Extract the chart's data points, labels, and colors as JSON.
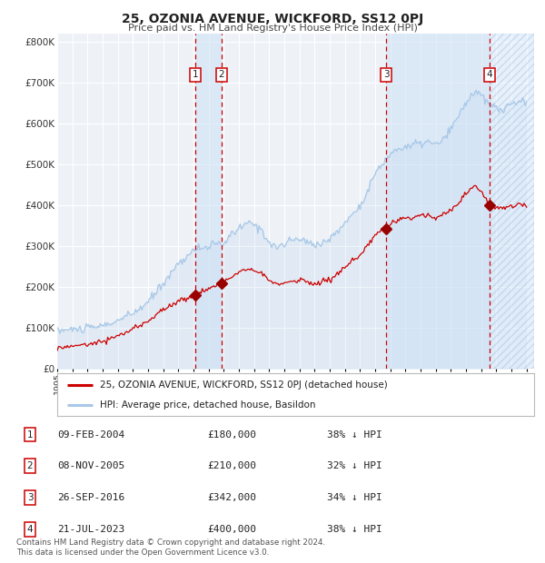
{
  "title": "25, OZONIA AVENUE, WICKFORD, SS12 0PJ",
  "subtitle": "Price paid vs. HM Land Registry's House Price Index (HPI)",
  "hpi_color": "#a8c8e8",
  "price_color": "#cc0000",
  "sale_marker_color": "#990000",
  "background_color": "#ffffff",
  "plot_bg_color": "#eef2f7",
  "grid_color": "#ffffff",
  "vline_color": "#cc0000",
  "shade_color": "#cce0f5",
  "hatch_color": "#aac8e8",
  "yticks": [
    0,
    100000,
    200000,
    300000,
    400000,
    500000,
    600000,
    700000,
    800000
  ],
  "ytick_labels": [
    "£0",
    "£100K",
    "£200K",
    "£300K",
    "£400K",
    "£500K",
    "£600K",
    "£700K",
    "£800K"
  ],
  "x_start_year": 1995,
  "x_end_year": 2026,
  "sale_dates_decimal": [
    2004.11,
    2005.86,
    2016.74,
    2023.55
  ],
  "sale_prices": [
    180000,
    210000,
    342000,
    400000
  ],
  "sale_labels": [
    "1",
    "2",
    "3",
    "4"
  ],
  "legend_price_label": "25, OZONIA AVENUE, WICKFORD, SS12 0PJ (detached house)",
  "legend_hpi_label": "HPI: Average price, detached house, Basildon",
  "table_rows": [
    [
      "1",
      "09-FEB-2004",
      "£180,000",
      "38% ↓ HPI"
    ],
    [
      "2",
      "08-NOV-2005",
      "£210,000",
      "32% ↓ HPI"
    ],
    [
      "3",
      "26-SEP-2016",
      "£342,000",
      "34% ↓ HPI"
    ],
    [
      "4",
      "21-JUL-2023",
      "£400,000",
      "38% ↓ HPI"
    ]
  ],
  "footnote": "Contains HM Land Registry data © Crown copyright and database right 2024.\nThis data is licensed under the Open Government Licence v3.0."
}
